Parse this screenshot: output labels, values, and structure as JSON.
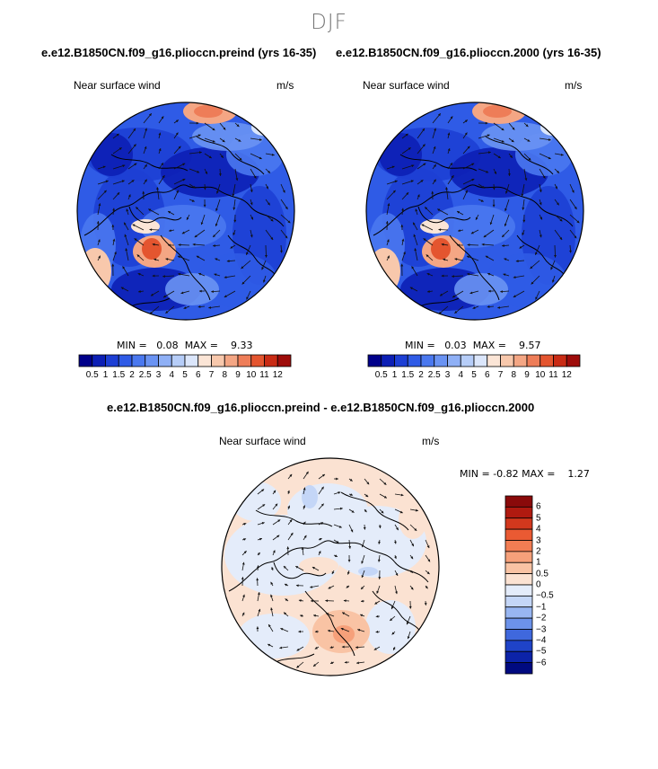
{
  "figure_title": "DJF",
  "chart_data": [
    {
      "type": "heatmap",
      "subtype": "polar-stereographic wind speed map with wind vectors",
      "title": "e.e12.B1850CN.f09_g16.plioccn.preind (yrs 16-35)",
      "variable": "Near surface wind",
      "units": "m/s",
      "min_label": "MIN =",
      "min": "0.08",
      "max_label": "MAX =",
      "max": "9.33",
      "colorbar_levels": [
        "0.5",
        "1",
        "1.5",
        "2",
        "2.5",
        "3",
        "4",
        "5",
        "6",
        "7",
        "8",
        "9",
        "10",
        "11",
        "12"
      ],
      "colorbar_colors": [
        "#00008a",
        "#0c1fb5",
        "#1d3fd4",
        "#2f5be6",
        "#4a78ef",
        "#6a93f3",
        "#8fb0f6",
        "#b6cdf8",
        "#dbe6fb",
        "#fbe5d6",
        "#f8c8ac",
        "#f4a684",
        "#ee7d58",
        "#e4552f",
        "#c92b14",
        "#9e0c0a"
      ]
    },
    {
      "type": "heatmap",
      "subtype": "polar-stereographic wind speed map with wind vectors",
      "title": "e.e12.B1850CN.f09_g16.plioccn.2000 (yrs 16-35)",
      "variable": "Near surface wind",
      "units": "m/s",
      "min_label": "MIN =",
      "min": "0.03",
      "max_label": "MAX =",
      "max": "9.57",
      "colorbar_levels": [
        "0.5",
        "1",
        "1.5",
        "2",
        "2.5",
        "3",
        "4",
        "5",
        "6",
        "7",
        "8",
        "9",
        "10",
        "11",
        "12"
      ],
      "colorbar_colors": [
        "#00008a",
        "#0c1fb5",
        "#1d3fd4",
        "#2f5be6",
        "#4a78ef",
        "#6a93f3",
        "#8fb0f6",
        "#b6cdf8",
        "#dbe6fb",
        "#fbe5d6",
        "#f8c8ac",
        "#f4a684",
        "#ee7d58",
        "#e4552f",
        "#c92b14",
        "#9e0c0a"
      ]
    },
    {
      "type": "heatmap",
      "subtype": "polar-stereographic wind speed difference map with wind vectors",
      "title": "e.e12.B1850CN.f09_g16.plioccn.preind - e.e12.B1850CN.f09_g16.plioccn.2000",
      "variable": "Near surface wind",
      "units": "m/s",
      "min_label": "MIN =",
      "min": "-0.82",
      "max_label": "MAX =",
      "max": "1.27",
      "colorbar_levels": [
        "6",
        "5",
        "4",
        "3",
        "2",
        "1",
        "0.5",
        "0",
        "−0.5",
        "−1",
        "−2",
        "−3",
        "−4",
        "−5",
        "−6"
      ],
      "colorbar_colors": [
        "#8a0a0a",
        "#b01a10",
        "#d2381d",
        "#ea5a33",
        "#f27d53",
        "#f6a07a",
        "#f9c3a4",
        "#fbe2d2",
        "#e4ecfa",
        "#c4d6f7",
        "#98b6f2",
        "#6c92ea",
        "#3f68dd",
        "#1f43c8",
        "#0c23a8",
        "#000a80"
      ]
    }
  ]
}
